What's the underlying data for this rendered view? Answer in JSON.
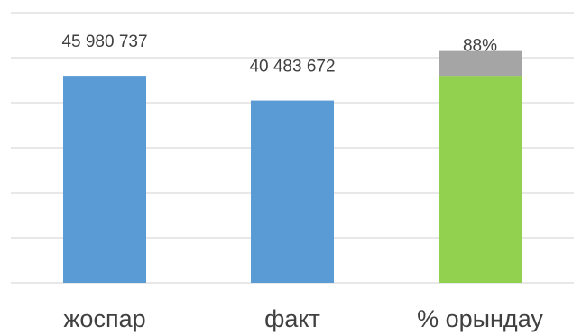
{
  "chart_data": {
    "type": "bar",
    "stacked": true,
    "categories": [
      "жоспар",
      "факт",
      "% орындау"
    ],
    "series": [
      {
        "color": "#5b9bd5",
        "values": [
          45980737,
          40483672,
          null
        ],
        "value_labels": [
          "45 980 737",
          "40 483 672",
          null
        ]
      },
      {
        "color": "#92d050",
        "values": [
          null,
          null,
          45980737
        ]
      },
      {
        "color": "#a5a5a5",
        "values": [
          null,
          null,
          5497065
        ]
      }
    ],
    "annotations": [
      "88%"
    ],
    "ylim": [
      0,
      60000000
    ],
    "yticks": [
      0,
      10000000,
      20000000,
      30000000,
      40000000,
      50000000,
      60000000
    ],
    "grid": true
  }
}
